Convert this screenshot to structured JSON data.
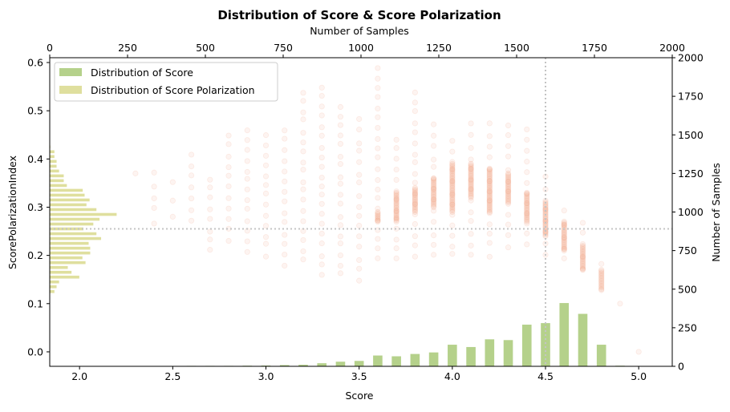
{
  "chart_data": {
    "type": "scatter",
    "title": "Distribution of Score & Score Polarization",
    "xlabel": "Score",
    "ylabel": "ScorePolarizationIndex",
    "top_xlabel": "Number of Samples",
    "right_ylabel": "Number of Samples",
    "xlim": [
      1.84,
      5.18
    ],
    "ylim": [
      -0.03,
      0.61
    ],
    "count_lim": [
      0,
      2000
    ],
    "x_ticks": [
      "2.0",
      "2.5",
      "3.0",
      "3.5",
      "4.0",
      "4.5",
      "5.0"
    ],
    "y_ticks": [
      "0.0",
      "0.1",
      "0.2",
      "0.3",
      "0.4",
      "0.5",
      "0.6"
    ],
    "count_ticks": [
      "0",
      "250",
      "500",
      "750",
      "1000",
      "1250",
      "1500",
      "1750",
      "2000"
    ],
    "legend": {
      "location": "upper-left",
      "entries": [
        "Distribution of Score",
        "Distribution of Score Polarization"
      ]
    },
    "colors": {
      "score_bars": "#b5d18b",
      "polarization_bars": "#dfdf9e",
      "scatter": "#ee8a64",
      "reference_lines": "#c4c4c4"
    },
    "reference_lines": {
      "score": 4.5,
      "polarization": 0.255
    },
    "score_histogram": {
      "series_name": "Distribution of Score",
      "x": [
        2.3,
        2.4,
        2.5,
        2.6,
        2.7,
        2.8,
        2.9,
        3.0,
        3.1,
        3.2,
        3.3,
        3.4,
        3.5,
        3.6,
        3.7,
        3.8,
        3.9,
        4.0,
        4.1,
        4.2,
        4.3,
        4.4,
        4.5,
        4.6,
        4.7,
        4.8,
        4.9
      ],
      "counts": [
        1,
        1,
        2,
        3,
        3,
        3,
        4,
        5,
        8,
        10,
        20,
        30,
        35,
        70,
        65,
        80,
        90,
        140,
        125,
        175,
        170,
        270,
        280,
        410,
        340,
        140,
        4
      ]
    },
    "polarization_histogram": {
      "series_name": "Distribution of Score Polarization",
      "y": [
        0.125,
        0.135,
        0.145,
        0.155,
        0.165,
        0.175,
        0.185,
        0.195,
        0.205,
        0.215,
        0.225,
        0.235,
        0.245,
        0.255,
        0.265,
        0.275,
        0.285,
        0.295,
        0.305,
        0.315,
        0.325,
        0.335,
        0.345,
        0.355,
        0.365,
        0.375,
        0.385,
        0.395,
        0.405,
        0.415,
        0.425
      ],
      "counts": [
        15,
        22,
        30,
        95,
        70,
        58,
        115,
        105,
        130,
        130,
        125,
        165,
        150,
        108,
        140,
        160,
        215,
        150,
        118,
        128,
        112,
        106,
        55,
        45,
        45,
        30,
        22,
        22,
        15,
        15,
        2
      ]
    },
    "scatter_columns": {
      "series_name": "Score vs ScorePolarizationIndex",
      "score": [
        2.3,
        2.4,
        2.5,
        2.6,
        2.7,
        2.8,
        2.9,
        3.0,
        3.1,
        3.2,
        3.3,
        3.4,
        3.5,
        3.6,
        3.7,
        3.8,
        3.9,
        4.0,
        4.1,
        4.2,
        4.3,
        4.4,
        4.5,
        4.6,
        4.7,
        4.8,
        4.9,
        5.0
      ],
      "polarization_min": [
        0.37,
        0.27,
        0.28,
        0.27,
        0.21,
        0.23,
        0.21,
        0.2,
        0.18,
        0.19,
        0.16,
        0.16,
        0.15,
        0.19,
        0.19,
        0.2,
        0.2,
        0.2,
        0.2,
        0.2,
        0.22,
        0.22,
        0.2,
        0.19,
        0.17,
        0.13,
        0.1,
        0.0
      ],
      "polarization_max": [
        0.37,
        0.37,
        0.35,
        0.41,
        0.36,
        0.45,
        0.46,
        0.45,
        0.46,
        0.54,
        0.55,
        0.51,
        0.48,
        0.59,
        0.44,
        0.54,
        0.47,
        0.44,
        0.47,
        0.47,
        0.47,
        0.46,
        0.36,
        0.29,
        0.27,
        0.18,
        0.1,
        0.0
      ],
      "dense_min": [
        null,
        null,
        null,
        null,
        null,
        null,
        null,
        null,
        null,
        null,
        null,
        null,
        null,
        0.27,
        0.27,
        0.29,
        0.3,
        0.29,
        0.32,
        0.29,
        0.31,
        0.27,
        0.24,
        0.21,
        0.17,
        0.13,
        null,
        null
      ],
      "dense_max": [
        null,
        null,
        null,
        null,
        null,
        null,
        null,
        null,
        null,
        null,
        null,
        null,
        null,
        0.29,
        0.33,
        0.34,
        0.36,
        0.39,
        0.39,
        0.38,
        0.37,
        0.33,
        0.31,
        0.27,
        0.22,
        0.17,
        null,
        null
      ]
    }
  }
}
